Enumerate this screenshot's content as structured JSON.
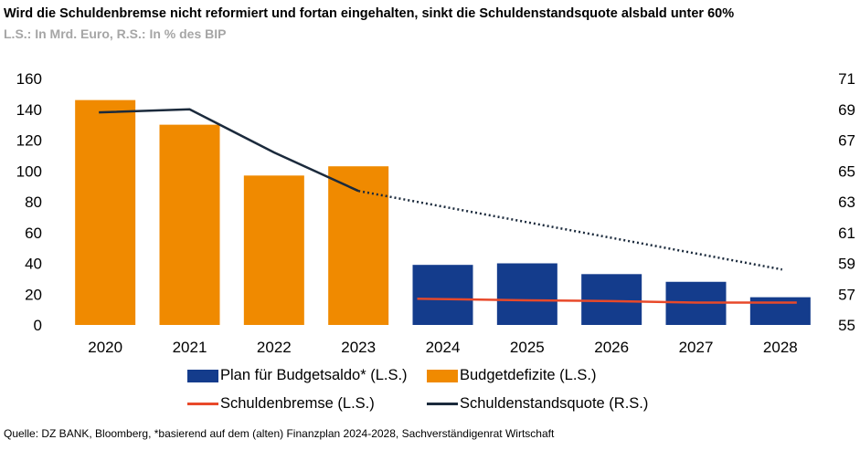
{
  "header": {
    "title": "Wird die Schuldenbremse nicht reformiert und fortan eingehalten, sinkt die Schuldenstandsquote alsbald unter 60%",
    "subtitle": "L.S.: In Mrd. Euro, R.S.: In % des BIP"
  },
  "footer": {
    "source": "Quelle: DZ BANK, Bloomberg, *basierend auf dem (alten) Finanzplan 2024-2028, Sachverständigenrat Wirtschaft"
  },
  "colors": {
    "orange": "#F08A00",
    "navy": "#143C8C",
    "red": "#E8492A",
    "dark": "#1B2A3C"
  },
  "chart_data": {
    "type": "bar",
    "categories": [
      "2020",
      "2021",
      "2022",
      "2023",
      "2024",
      "2025",
      "2026",
      "2027",
      "2028"
    ],
    "y_left": {
      "ylim": [
        0,
        160
      ],
      "ticks": [
        "0",
        "20",
        "40",
        "60",
        "80",
        "100",
        "120",
        "140",
        "160"
      ]
    },
    "y_right": {
      "ylim": [
        55,
        71
      ],
      "ticks": [
        "55",
        "57",
        "59",
        "61",
        "63",
        "65",
        "67",
        "69",
        "71"
      ]
    },
    "grid": false,
    "legend_position": "bottom",
    "series": [
      {
        "name": "Plan für Budgetsaldo* (L.S.)",
        "kind": "bar",
        "axis": "left",
        "color": "#143C8C",
        "values": [
          null,
          null,
          null,
          null,
          39,
          40,
          33,
          28,
          18
        ]
      },
      {
        "name": "Budgetdefizite (L.S.)",
        "kind": "bar",
        "axis": "left",
        "color": "#F08A00",
        "values": [
          146,
          130,
          97,
          103,
          null,
          null,
          null,
          null,
          null
        ]
      },
      {
        "name": "Schuldenbremse (L.S.)",
        "kind": "line",
        "axis": "left",
        "color": "#E8492A",
        "values": [
          null,
          null,
          null,
          null,
          17,
          16,
          15.5,
          14.5,
          14.5
        ]
      },
      {
        "name": "Schuldenstandsquote (R.S.)",
        "kind": "line",
        "axis": "right",
        "color": "#1B2A3C",
        "values": [
          68.8,
          69,
          66.2,
          63.7,
          null,
          null,
          null,
          null,
          58.6
        ],
        "projection_from_index": 3
      }
    ]
  }
}
